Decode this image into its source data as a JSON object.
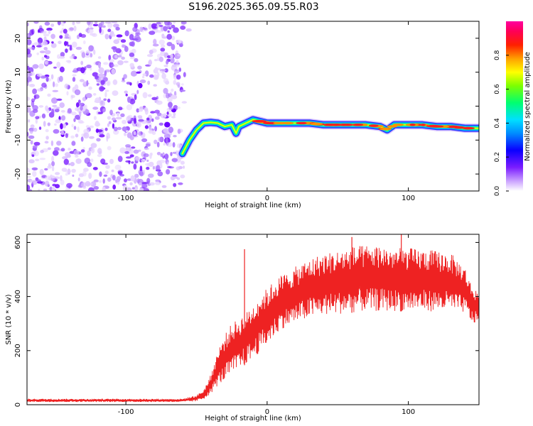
{
  "title": "S196.2025.365.09.55.R03",
  "chart_data": [
    {
      "type": "heatmap",
      "xlabel": "Height of straight line (km)",
      "ylabel": "Frequency (Hz)",
      "xlim": [
        -170,
        150
      ],
      "ylim": [
        -25,
        25
      ],
      "x_ticks": [
        -100,
        0,
        100
      ],
      "y_ticks": [
        -20,
        -10,
        0,
        10,
        20
      ],
      "colorbar": {
        "label": "Normalized spectral amplitude",
        "range": [
          0,
          1
        ],
        "ticks": [
          0.0,
          0.2,
          0.4,
          0.6,
          0.8
        ]
      },
      "noise_region_x": [
        -170,
        -55
      ],
      "signal_trace": {
        "x": [
          -60,
          -55,
          -50,
          -45,
          -40,
          -35,
          -30,
          -25,
          -22,
          -20,
          -15,
          -10,
          -5,
          0,
          10,
          20,
          30,
          40,
          50,
          60,
          70,
          80,
          85,
          90,
          100,
          110,
          120,
          130,
          140,
          150
        ],
        "y": [
          -14,
          -10,
          -7,
          -5,
          -4.8,
          -5,
          -6,
          -5.5,
          -8,
          -6,
          -5,
          -4,
          -4.5,
          -5,
          -5,
          -5,
          -5,
          -5.5,
          -5.5,
          -5.5,
          -5.5,
          -6,
          -7,
          -5.5,
          -5.5,
          -5.5,
          -6,
          -6,
          -6.5,
          -6.5
        ]
      }
    },
    {
      "type": "line",
      "xlabel": "Height of straight line (km)",
      "ylabel": "SNR (10 * v/v)",
      "xlim": [
        -170,
        150
      ],
      "ylim": [
        0,
        630
      ],
      "x_ticks": [
        -100,
        0,
        100
      ],
      "y_ticks": [
        0,
        200,
        400,
        600
      ],
      "color": "#ee2222",
      "series": [
        {
          "name": "",
          "envelope": {
            "x": [
              -170,
              -60,
              -50,
              -45,
              -40,
              -35,
              -30,
              -25,
              -20,
              -15,
              -10,
              -5,
              0,
              5,
              10,
              20,
              30,
              40,
              50,
              60,
              70,
              80,
              90,
              100,
              110,
              120,
              130,
              140,
              145,
              150
            ],
            "low": [
              10,
              10,
              12,
              20,
              40,
              70,
              90,
              110,
              130,
              150,
              170,
              195,
              220,
              250,
              280,
              300,
              320,
              330,
              335,
              340,
              345,
              345,
              345,
              345,
              345,
              345,
              345,
              340,
              300,
              300
            ],
            "high": [
              22,
              22,
              35,
              55,
              110,
              200,
              260,
              300,
              320,
              340,
              370,
              410,
              430,
              460,
              480,
              510,
              540,
              560,
              570,
              585,
              590,
              590,
              580,
              580,
              575,
              570,
              560,
              510,
              440,
              420
            ]
          },
          "spikes": [
            {
              "x": -16,
              "y": 575
            },
            {
              "x": 60,
              "y": 620
            },
            {
              "x": 95,
              "y": 630
            }
          ]
        }
      ]
    }
  ]
}
